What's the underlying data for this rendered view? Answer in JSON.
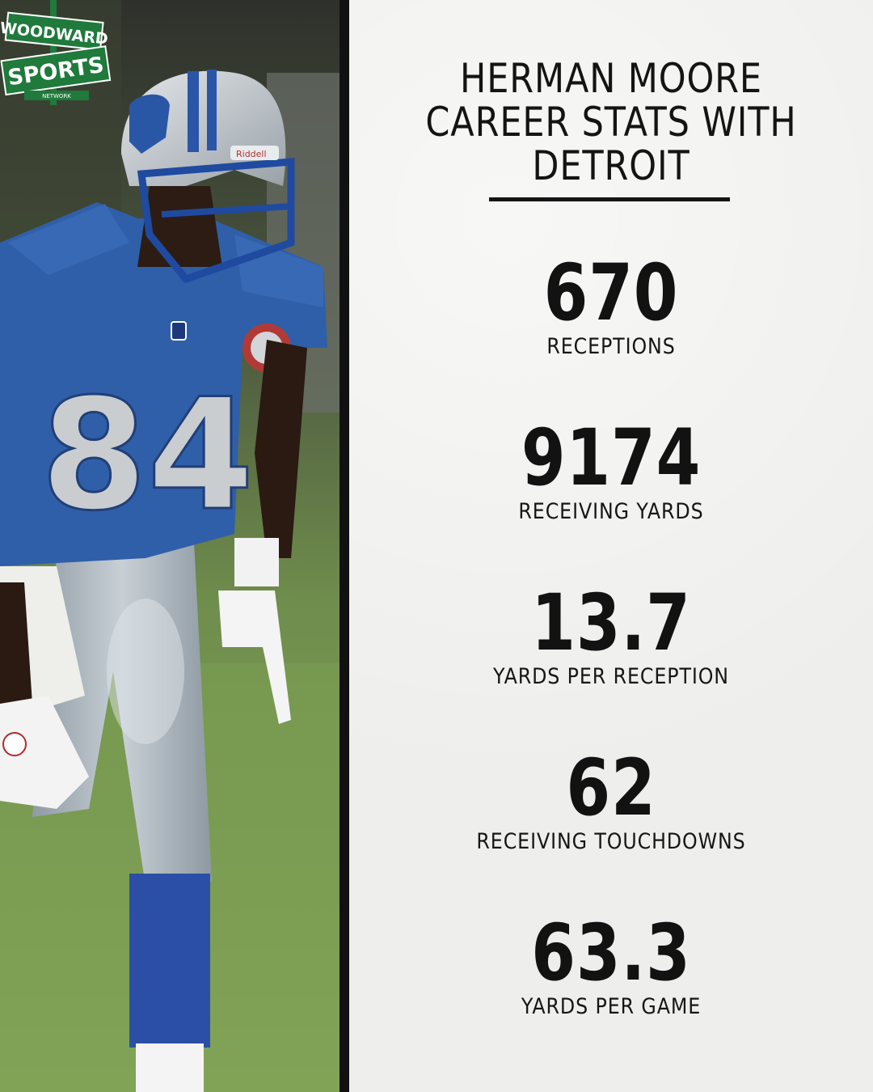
{
  "logo": {
    "line1": "WOODWARD",
    "line2": "SPORTS",
    "line3": "NETWORK",
    "color": "#1f7a3c"
  },
  "photo": {
    "jersey_number": "84",
    "helmet_brand": "Riddell",
    "jersey_color": "#2f5fa8",
    "helmet_color": "#c5c9cc"
  },
  "title": {
    "line1": "HERMAN MOORE",
    "line2": "CAREER STATS WITH",
    "line3": "DETROIT"
  },
  "stats": [
    {
      "value": "670",
      "label": "RECEPTIONS"
    },
    {
      "value": "9174",
      "label": "RECEIVING YARDS"
    },
    {
      "value": "13.7",
      "label": "YARDS PER RECEPTION"
    },
    {
      "value": "62",
      "label": "RECEIVING TOUCHDOWNS"
    },
    {
      "value": "63.3",
      "label": "YARDS PER GAME"
    }
  ]
}
